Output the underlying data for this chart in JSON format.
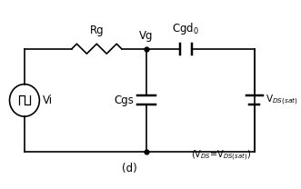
{
  "fig_width": 3.31,
  "fig_height": 2.08,
  "dpi": 100,
  "bg_color": "#ffffff",
  "line_color": "#000000",
  "line_width": 1.2,
  "label_Rg": "Rg",
  "label_Vg": "Vg",
  "label_Cgd0": "Cgd$_0$",
  "label_Vi": "Vi",
  "label_Cgs": "Cgs",
  "label_VDS": "V$_{DS(sat)}$",
  "label_d": "(d)",
  "label_eq": "(V$_{DS}$=V$_{DS(sat)}$)",
  "font_size": 8.5,
  "small_font": 7.0
}
